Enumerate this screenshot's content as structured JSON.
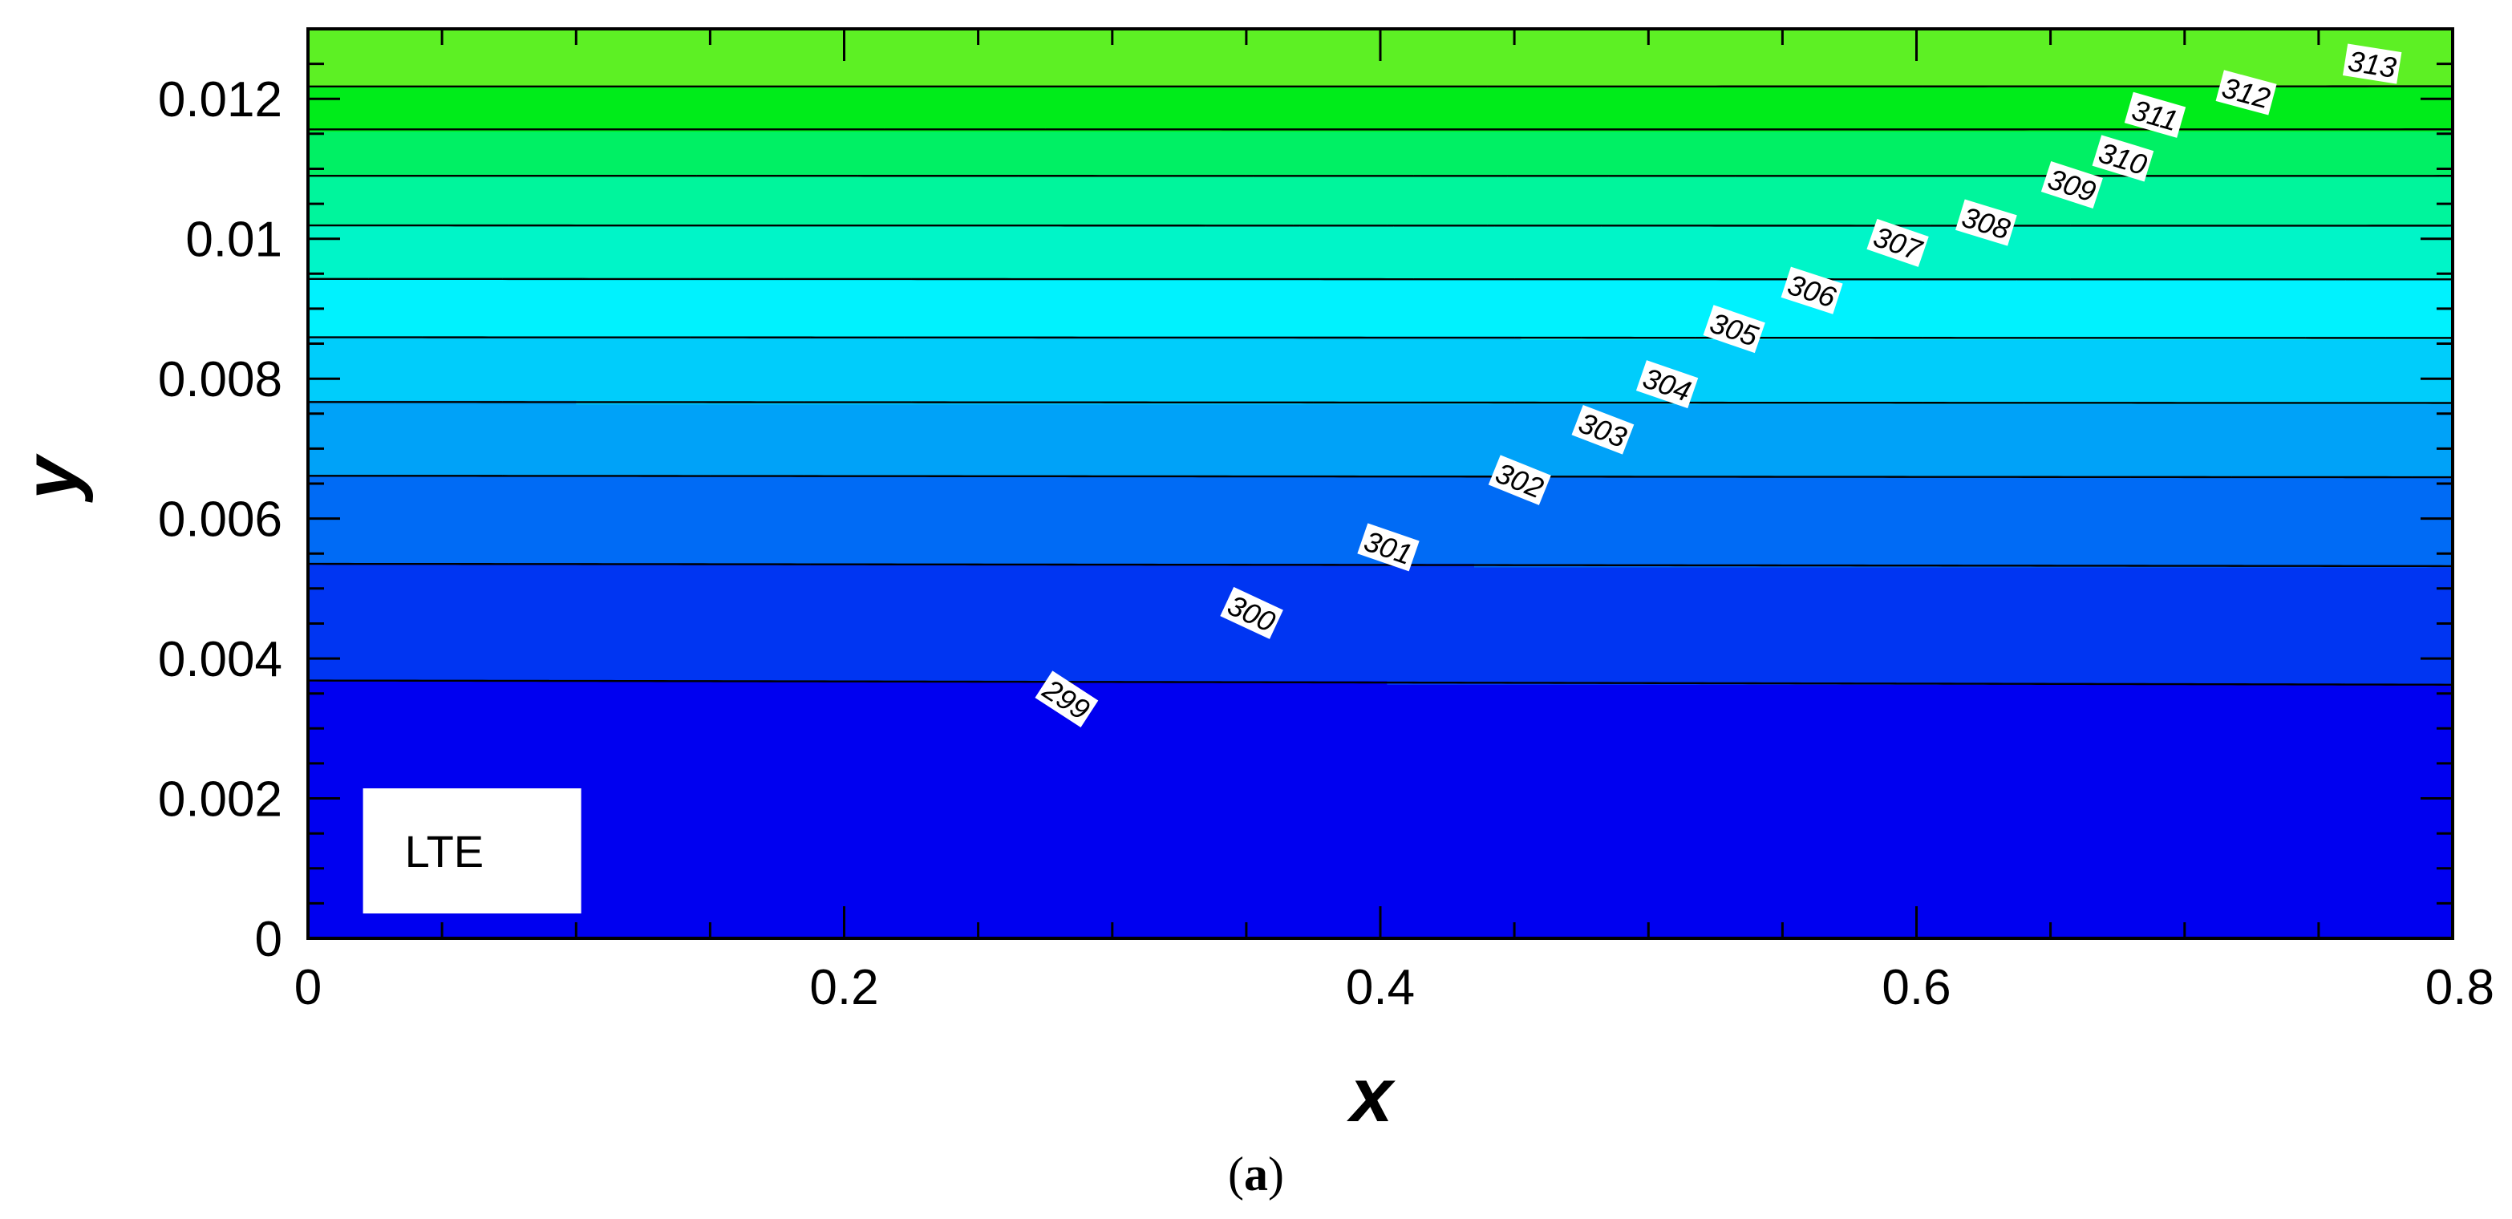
{
  "colors": {
    "band_colors": [
      "#0000f0",
      "#0035f2",
      "#006bf5",
      "#00a2f8",
      "#00cdfb",
      "#00f2fe",
      "#00f5c8",
      "#00f59c",
      "#00f064",
      "#00ec1a",
      "#5df024",
      "#a4f623",
      "#dffb16",
      "#ffff00",
      "#ffcc00",
      "#ff9d00",
      "#ff6400",
      "#ec2a00"
    ],
    "contour_line": "#000000",
    "annotation_bg": "#ffffff"
  },
  "chart_data": {
    "type": "contour",
    "xlabel": "x",
    "ylabel": "y",
    "xlim": [
      0,
      0.8
    ],
    "ylim": [
      0,
      0.013
    ],
    "x_ticks": [
      0,
      0.2,
      0.4,
      0.6,
      0.8
    ],
    "x_tick_labels": [
      "0",
      "0.2",
      "0.4",
      "0.6",
      "0.8"
    ],
    "y_ticks": [
      0,
      0.002,
      0.004,
      0.006,
      0.008,
      0.01,
      0.012
    ],
    "y_tick_labels": [
      "0",
      "0.002",
      "0.004",
      "0.006",
      "0.008",
      "0.01",
      "0.012"
    ],
    "contour_levels": [
      299,
      300,
      301,
      302,
      303,
      304,
      305,
      306,
      307,
      308,
      309,
      310,
      311,
      312,
      313
    ],
    "contour_labels": [
      {
        "text": "299",
        "x": 0.283,
        "y": 0.00342,
        "angle": 33
      },
      {
        "text": "300",
        "x": 0.352,
        "y": 0.00465,
        "angle": 25
      },
      {
        "text": "301",
        "x": 0.403,
        "y": 0.00559,
        "angle": 19
      },
      {
        "text": "302",
        "x": 0.452,
        "y": 0.00655,
        "angle": 22
      },
      {
        "text": "303",
        "x": 0.483,
        "y": 0.00727,
        "angle": 21
      },
      {
        "text": "304",
        "x": 0.507,
        "y": 0.00792,
        "angle": 19
      },
      {
        "text": "305",
        "x": 0.532,
        "y": 0.00871,
        "angle": 19
      },
      {
        "text": "306",
        "x": 0.561,
        "y": 0.00926,
        "angle": 18
      },
      {
        "text": "307",
        "x": 0.593,
        "y": 0.00994,
        "angle": 19
      },
      {
        "text": "308",
        "x": 0.626,
        "y": 0.01023,
        "angle": 17
      },
      {
        "text": "309",
        "x": 0.658,
        "y": 0.01077,
        "angle": 18
      },
      {
        "text": "310",
        "x": 0.677,
        "y": 0.01115,
        "angle": 17
      },
      {
        "text": "311",
        "x": 0.689,
        "y": 0.01177,
        "angle": 16
      },
      {
        "text": "312",
        "x": 0.723,
        "y": 0.01209,
        "angle": 15
      },
      {
        "text": "313",
        "x": 0.77,
        "y": 0.0125,
        "angle": 9
      }
    ],
    "annotation": {
      "text": "LTE",
      "x": 0.028,
      "y": 0.00125
    }
  },
  "caption": {
    "open": "(",
    "letter": "a",
    "close": ")"
  }
}
